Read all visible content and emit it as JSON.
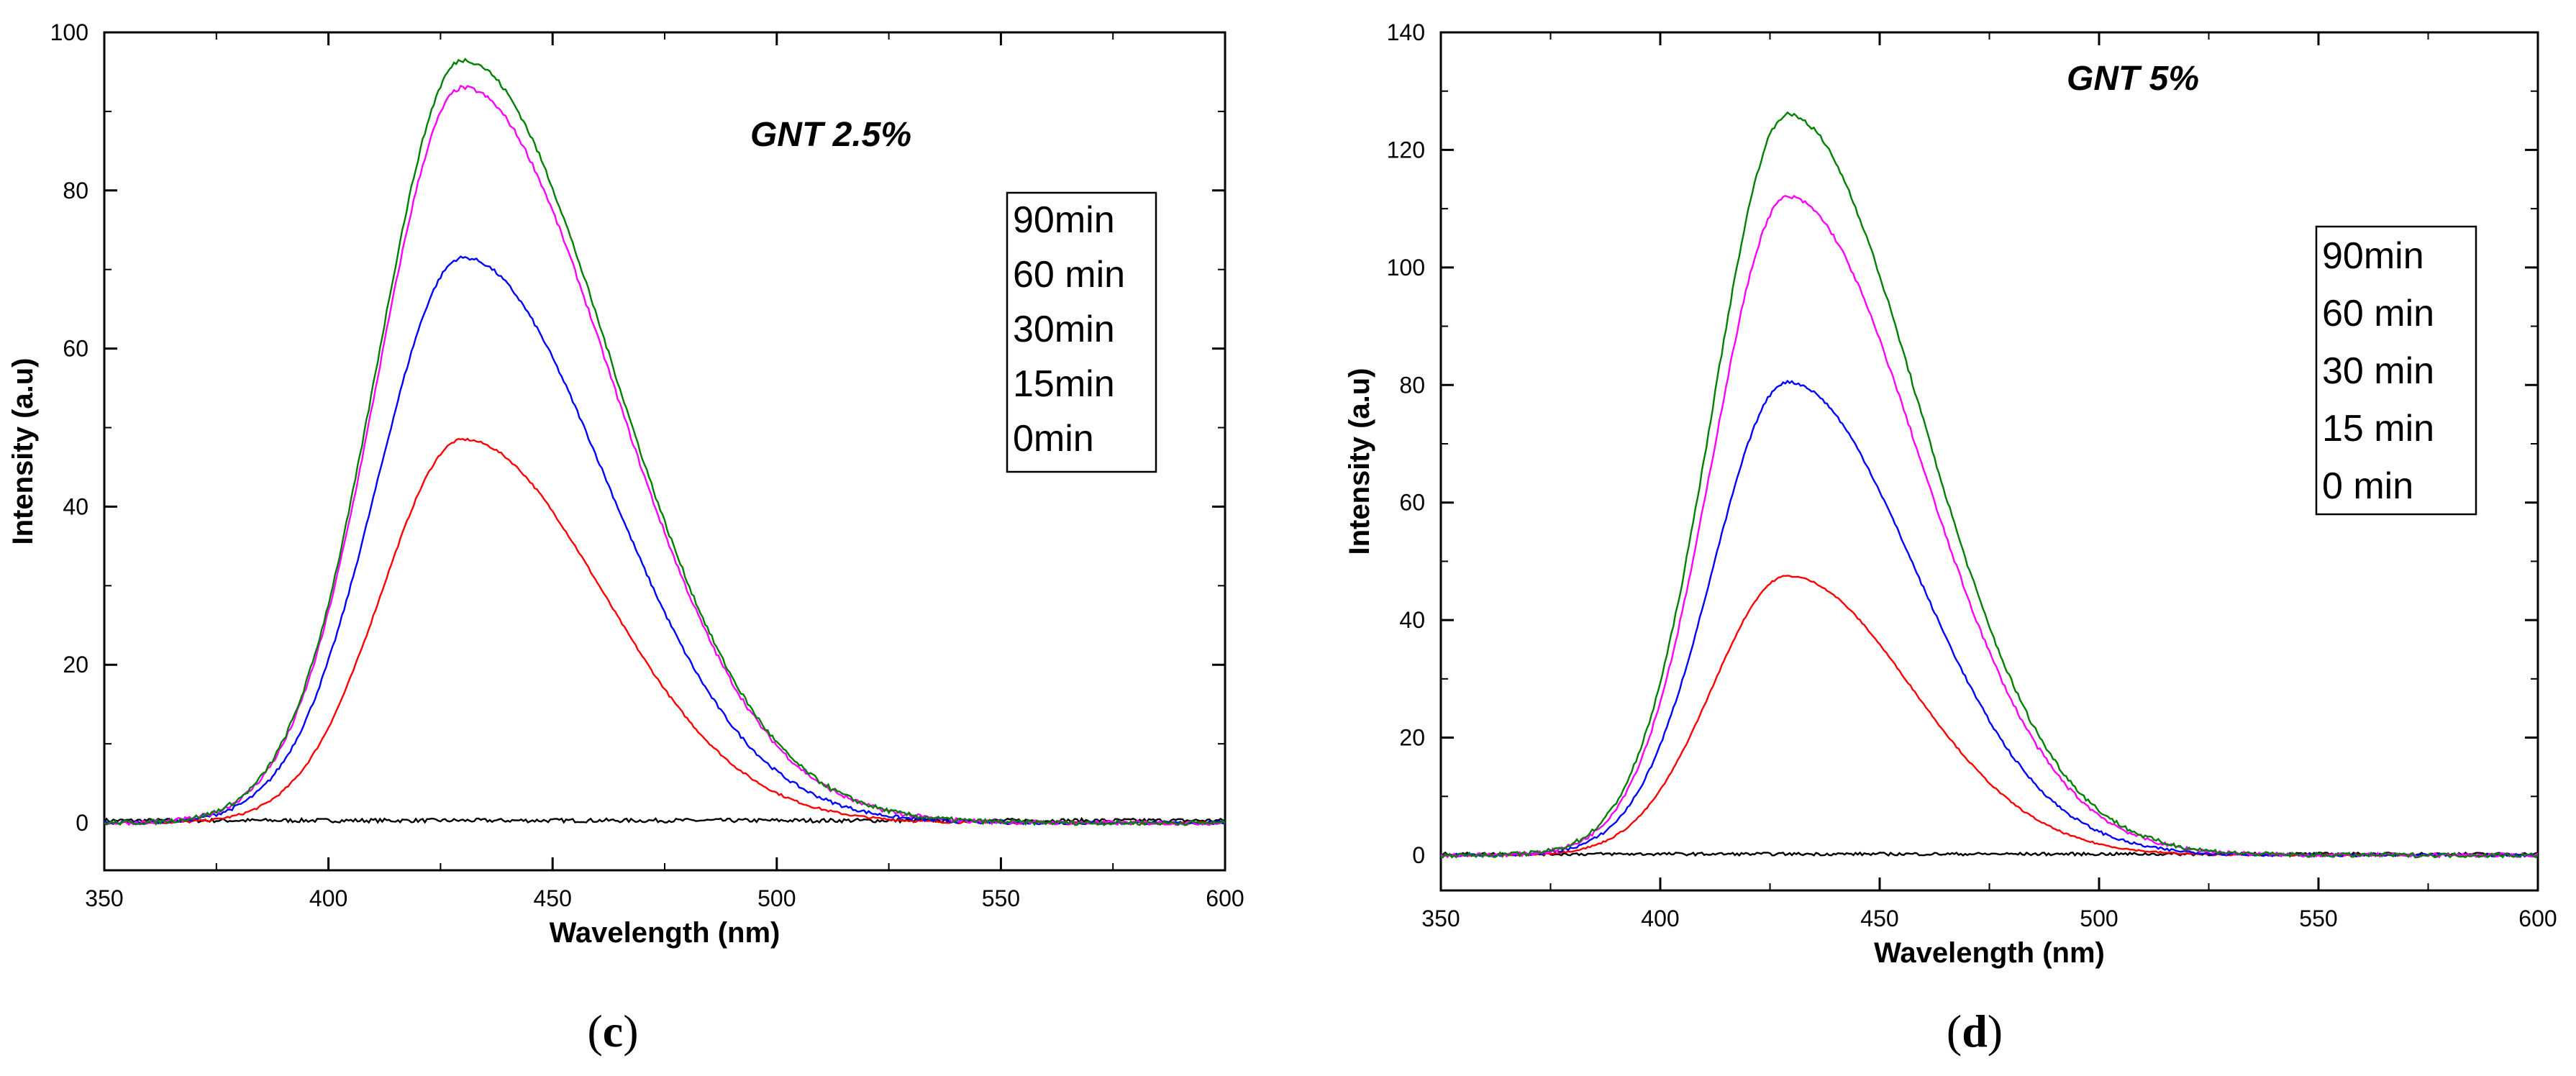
{
  "chart_data": [
    {
      "type": "line",
      "panel_label": "c",
      "title": "GNT 2.5%",
      "xlabel": "Wavelength (nm)",
      "ylabel": "Intensity (a.u)",
      "xlim": [
        350,
        600
      ],
      "ylim": [
        -6,
        100
      ],
      "xticks": [
        350,
        400,
        450,
        500,
        550,
        600
      ],
      "yticks": [
        0,
        20,
        40,
        60,
        80,
        100
      ],
      "grid": false,
      "legend_position": "top-right",
      "legend": [
        "90min",
        "60 min",
        "30min",
        "15min",
        "0min"
      ],
      "series": [
        {
          "name": "90min",
          "color": "#008000",
          "peak_x": 430,
          "peak": 96.5,
          "sigma_left": 19,
          "sigma_right": 33
        },
        {
          "name": "60 min",
          "color": "#ff00ff",
          "peak_x": 430,
          "peak": 93.0,
          "sigma_left": 19,
          "sigma_right": 33
        },
        {
          "name": "30min",
          "color": "#0000ff",
          "peak_x": 430,
          "peak": 71.5,
          "sigma_left": 19,
          "sigma_right": 32
        },
        {
          "name": "15min",
          "color": "#ff0000",
          "peak_x": 430,
          "peak": 48.5,
          "sigma_left": 18,
          "sigma_right": 31
        },
        {
          "name": "0min",
          "color": "#000000",
          "peak_x": 430,
          "peak": 0.3,
          "sigma_left": 200,
          "sigma_right": 200
        }
      ]
    },
    {
      "type": "line",
      "panel_label": "d",
      "title": "GNT 5%",
      "xlabel": "Wavelength (nm)",
      "ylabel": "Intensity (a.u)",
      "xlim": [
        350,
        600
      ],
      "ylim": [
        -6,
        140
      ],
      "xticks": [
        350,
        400,
        450,
        500,
        550,
        600
      ],
      "yticks": [
        0,
        20,
        40,
        60,
        80,
        100,
        120,
        140
      ],
      "grid": false,
      "legend_position": "top-right",
      "legend": [
        "90min",
        "60 min",
        "30 min",
        "15 min",
        "0 min"
      ],
      "series": [
        {
          "name": "90min",
          "color": "#008000",
          "peak_x": 429,
          "peak": 126,
          "sigma_left": 17,
          "sigma_right": 30
        },
        {
          "name": "60 min",
          "color": "#ff00ff",
          "peak_x": 429,
          "peak": 112,
          "sigma_left": 17,
          "sigma_right": 30
        },
        {
          "name": "30 min",
          "color": "#0000ff",
          "peak_x": 429,
          "peak": 80.5,
          "sigma_left": 17,
          "sigma_right": 29
        },
        {
          "name": "15 min",
          "color": "#ff0000",
          "peak_x": 429,
          "peak": 47.5,
          "sigma_left": 17,
          "sigma_right": 28
        },
        {
          "name": "0 min",
          "color": "#000000",
          "peak_x": 429,
          "peak": 0.2,
          "sigma_left": 200,
          "sigma_right": 200
        }
      ]
    }
  ]
}
